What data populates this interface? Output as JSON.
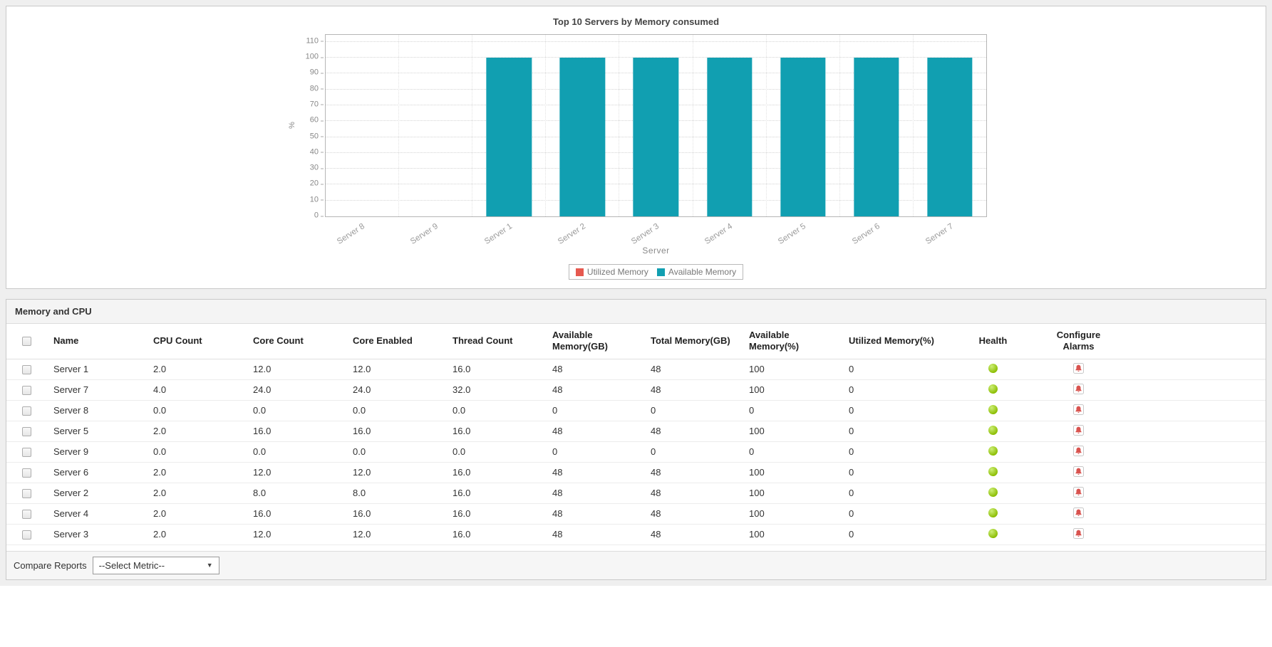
{
  "colors": {
    "available_memory": "#119fb1",
    "utilized_memory": "#e6594f",
    "health_ok": "#8dc63f"
  },
  "chart_data": {
    "type": "bar",
    "title": "Top 10 Servers by Memory consumed",
    "xlabel": "Server",
    "ylabel": "%",
    "ylim": [
      0,
      110
    ],
    "ytick_step": 10,
    "grid": true,
    "legend_position": "bottom",
    "categories": [
      "Server 8",
      "Server 9",
      "Server 1",
      "Server 2",
      "Server 3",
      "Server 4",
      "Server 5",
      "Server 6",
      "Server 7"
    ],
    "series": [
      {
        "name": "Utilized Memory",
        "color": "#e6594f",
        "values": [
          0,
          0,
          0,
          0,
          0,
          0,
          0,
          0,
          0
        ]
      },
      {
        "name": "Available Memory",
        "color": "#119fb1",
        "values": [
          0,
          0,
          100,
          100,
          100,
          100,
          100,
          100,
          100
        ]
      }
    ]
  },
  "table": {
    "section_title": "Memory and CPU",
    "columns": [
      "Name",
      "CPU Count",
      "Core Count",
      "Core Enabled",
      "Thread Count",
      "Available Memory(GB)",
      "Total Memory(GB)",
      "Available Memory(%)",
      "Utilized Memory(%)",
      "Health",
      "Configure Alarms"
    ],
    "rows": [
      {
        "cells": [
          "Server 1",
          "2.0",
          "12.0",
          "12.0",
          "16.0",
          "48",
          "48",
          "100",
          "0"
        ],
        "health": "ok"
      },
      {
        "cells": [
          "Server 7",
          "4.0",
          "24.0",
          "24.0",
          "32.0",
          "48",
          "48",
          "100",
          "0"
        ],
        "health": "ok"
      },
      {
        "cells": [
          "Server 8",
          "0.0",
          "0.0",
          "0.0",
          "0.0",
          "0",
          "0",
          "0",
          "0"
        ],
        "health": "ok"
      },
      {
        "cells": [
          "Server 5",
          "2.0",
          "16.0",
          "16.0",
          "16.0",
          "48",
          "48",
          "100",
          "0"
        ],
        "health": "ok"
      },
      {
        "cells": [
          "Server 9",
          "0.0",
          "0.0",
          "0.0",
          "0.0",
          "0",
          "0",
          "0",
          "0"
        ],
        "health": "ok"
      },
      {
        "cells": [
          "Server 6",
          "2.0",
          "12.0",
          "12.0",
          "16.0",
          "48",
          "48",
          "100",
          "0"
        ],
        "health": "ok"
      },
      {
        "cells": [
          "Server 2",
          "2.0",
          "8.0",
          "8.0",
          "16.0",
          "48",
          "48",
          "100",
          "0"
        ],
        "health": "ok"
      },
      {
        "cells": [
          "Server 4",
          "2.0",
          "16.0",
          "16.0",
          "16.0",
          "48",
          "48",
          "100",
          "0"
        ],
        "health": "ok"
      },
      {
        "cells": [
          "Server 3",
          "2.0",
          "12.0",
          "12.0",
          "16.0",
          "48",
          "48",
          "100",
          "0"
        ],
        "health": "ok"
      }
    ]
  },
  "footer": {
    "compare_reports_label": "Compare Reports",
    "metric_select_value": "--Select Metric--"
  }
}
